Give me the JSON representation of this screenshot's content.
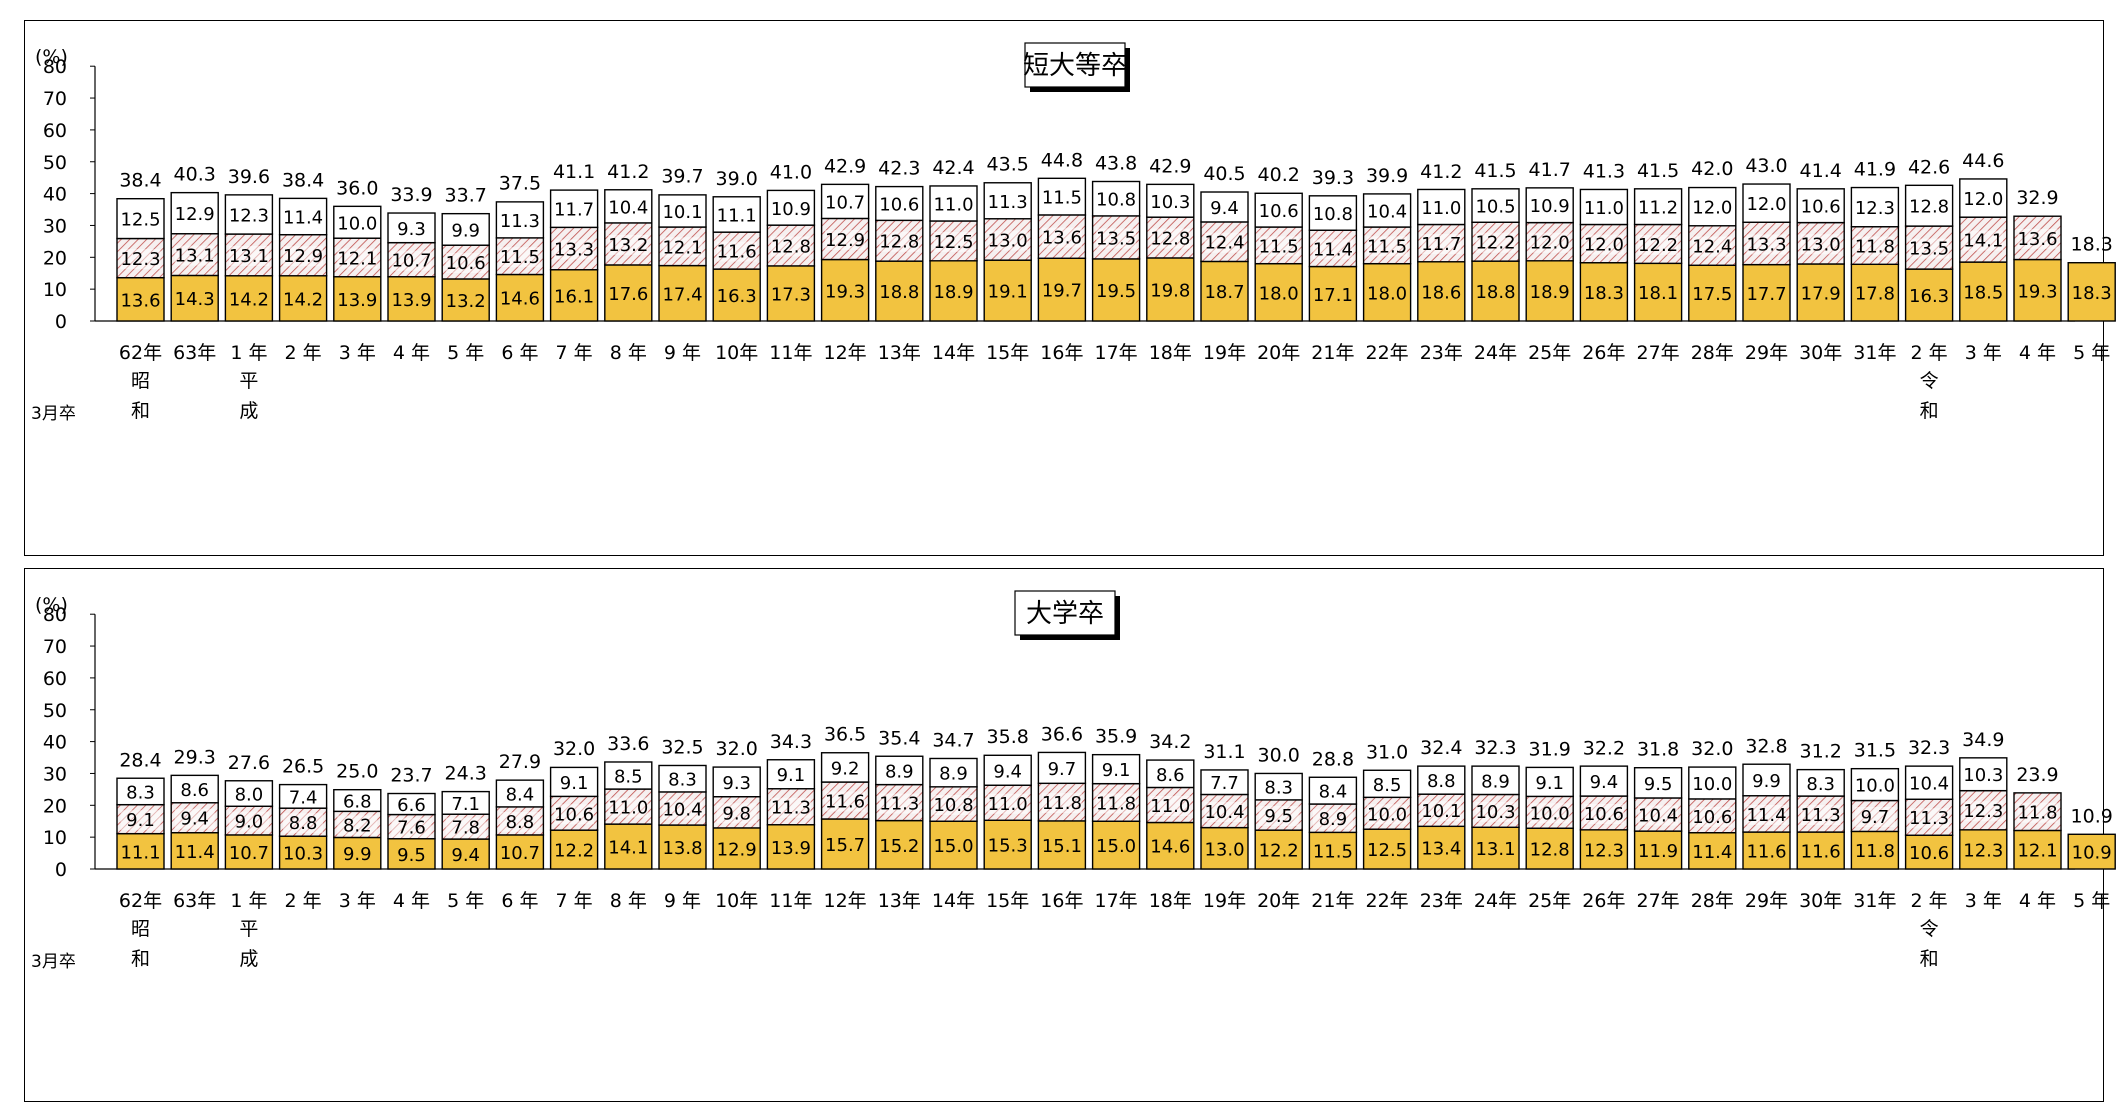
{
  "chart_data": [
    {
      "type": "bar",
      "stacked": true,
      "title": "短大等卒",
      "ylabel": "(%)",
      "ylim": [
        0,
        80
      ],
      "yticks": [
        0,
        10,
        20,
        30,
        40,
        50,
        60,
        70,
        80
      ],
      "row_header": "3月卒",
      "categories": [
        "62年",
        "63年",
        "1 年",
        "2 年",
        "3 年",
        "4 年",
        "5 年",
        "6 年",
        "7 年",
        "8 年",
        "9 年",
        "10年",
        "11年",
        "12年",
        "13年",
        "14年",
        "15年",
        "16年",
        "17年",
        "18年",
        "19年",
        "20年",
        "21年",
        "22年",
        "23年",
        "24年",
        "25年",
        "26年",
        "27年",
        "28年",
        "29年",
        "30年",
        "31年",
        "2 年",
        "3 年",
        "4 年",
        "5 年"
      ],
      "era_labels": [
        {
          "category_index": 0,
          "chars": [
            "昭",
            "和"
          ]
        },
        {
          "category_index": 2,
          "chars": [
            "平",
            "成"
          ]
        },
        {
          "category_index": 33,
          "chars": [
            "令",
            "和"
          ]
        }
      ],
      "series": [
        {
          "values": [
            13.6,
            14.3,
            14.2,
            14.2,
            13.9,
            13.9,
            13.2,
            14.6,
            16.1,
            17.6,
            17.4,
            16.3,
            17.3,
            19.3,
            18.8,
            18.9,
            19.1,
            19.7,
            19.5,
            19.8,
            18.7,
            18.0,
            17.1,
            18.0,
            18.6,
            18.8,
            18.9,
            18.3,
            18.1,
            17.5,
            17.7,
            17.9,
            17.8,
            16.3,
            18.5,
            19.3,
            18.3
          ],
          "color": "#f2c340",
          "pattern": "solid"
        },
        {
          "values": [
            12.3,
            13.1,
            13.1,
            12.9,
            12.1,
            10.7,
            10.6,
            11.5,
            13.3,
            13.2,
            12.1,
            11.6,
            12.8,
            12.9,
            12.8,
            12.5,
            13.0,
            13.6,
            13.5,
            12.8,
            12.4,
            11.5,
            11.4,
            11.5,
            11.7,
            12.2,
            12.0,
            12.0,
            12.2,
            12.4,
            13.3,
            13.0,
            11.8,
            13.5,
            14.1,
            13.6,
            null
          ],
          "color": "#c0504d",
          "pattern": "hatched"
        },
        {
          "values": [
            12.5,
            12.9,
            12.3,
            11.4,
            10.0,
            9.3,
            9.9,
            11.3,
            11.7,
            10.4,
            10.1,
            11.1,
            10.9,
            10.7,
            10.6,
            11.0,
            11.3,
            11.5,
            10.8,
            10.3,
            9.4,
            10.6,
            10.8,
            10.4,
            11.0,
            10.5,
            10.9,
            11.0,
            11.2,
            12.0,
            12.0,
            10.6,
            12.3,
            12.8,
            12.0,
            null,
            null
          ],
          "color": "#ffffff",
          "pattern": "blank"
        }
      ],
      "totals": [
        38.4,
        40.3,
        39.6,
        38.4,
        36.0,
        33.9,
        33.7,
        37.5,
        41.1,
        41.2,
        39.7,
        39.0,
        41.0,
        42.9,
        42.3,
        42.4,
        43.5,
        44.8,
        43.8,
        42.9,
        40.5,
        40.2,
        39.3,
        39.9,
        41.2,
        41.5,
        41.7,
        41.3,
        41.5,
        42.0,
        43.0,
        41.4,
        41.9,
        42.6,
        44.6,
        32.9,
        18.3
      ]
    },
    {
      "type": "bar",
      "stacked": true,
      "title": "大学卒",
      "ylabel": "(%)",
      "ylim": [
        0,
        80
      ],
      "yticks": [
        0,
        10,
        20,
        30,
        40,
        50,
        60,
        70,
        80
      ],
      "row_header": "3月卒",
      "categories": [
        "62年",
        "63年",
        "1 年",
        "2 年",
        "3 年",
        "4 年",
        "5 年",
        "6 年",
        "7 年",
        "8 年",
        "9 年",
        "10年",
        "11年",
        "12年",
        "13年",
        "14年",
        "15年",
        "16年",
        "17年",
        "18年",
        "19年",
        "20年",
        "21年",
        "22年",
        "23年",
        "24年",
        "25年",
        "26年",
        "27年",
        "28年",
        "29年",
        "30年",
        "31年",
        "2 年",
        "3 年",
        "4 年",
        "5 年"
      ],
      "era_labels": [
        {
          "category_index": 0,
          "chars": [
            "昭",
            "和"
          ]
        },
        {
          "category_index": 2,
          "chars": [
            "平",
            "成"
          ]
        },
        {
          "category_index": 33,
          "chars": [
            "令",
            "和"
          ]
        }
      ],
      "series": [
        {
          "values": [
            11.1,
            11.4,
            10.7,
            10.3,
            9.9,
            9.5,
            9.4,
            10.7,
            12.2,
            14.1,
            13.8,
            12.9,
            13.9,
            15.7,
            15.2,
            15.0,
            15.3,
            15.1,
            15.0,
            14.6,
            13.0,
            12.2,
            11.5,
            12.5,
            13.4,
            13.1,
            12.8,
            12.3,
            11.9,
            11.4,
            11.6,
            11.6,
            11.8,
            10.6,
            12.3,
            12.1,
            10.9
          ],
          "color": "#f2c340",
          "pattern": "solid"
        },
        {
          "values": [
            9.1,
            9.4,
            9.0,
            8.8,
            8.2,
            7.6,
            7.8,
            8.8,
            10.6,
            11.0,
            10.4,
            9.8,
            11.3,
            11.6,
            11.3,
            10.8,
            11.0,
            11.8,
            11.8,
            11.0,
            10.4,
            9.5,
            8.9,
            10.0,
            10.1,
            10.3,
            10.0,
            10.6,
            10.4,
            10.6,
            11.4,
            11.3,
            9.7,
            11.3,
            12.3,
            11.8,
            null
          ],
          "color": "#c0504d",
          "pattern": "hatched"
        },
        {
          "values": [
            8.3,
            8.6,
            8.0,
            7.4,
            6.8,
            6.6,
            7.1,
            8.4,
            9.1,
            8.5,
            8.3,
            9.3,
            9.1,
            9.2,
            8.9,
            8.9,
            9.4,
            9.7,
            9.1,
            8.6,
            7.7,
            8.3,
            8.4,
            8.5,
            8.8,
            8.9,
            9.1,
            9.4,
            9.5,
            10.0,
            9.9,
            8.3,
            10.0,
            10.4,
            10.3,
            null,
            null
          ],
          "color": "#ffffff",
          "pattern": "blank"
        }
      ],
      "totals": [
        28.4,
        29.3,
        27.6,
        26.5,
        25.0,
        23.7,
        24.3,
        27.9,
        32.0,
        33.6,
        32.5,
        32.0,
        34.3,
        36.5,
        35.4,
        34.7,
        35.8,
        36.6,
        35.9,
        34.2,
        31.1,
        30.0,
        28.8,
        31.0,
        32.4,
        32.3,
        31.9,
        32.2,
        31.8,
        32.0,
        32.8,
        31.2,
        31.5,
        32.3,
        34.9,
        23.9,
        10.9
      ]
    }
  ]
}
